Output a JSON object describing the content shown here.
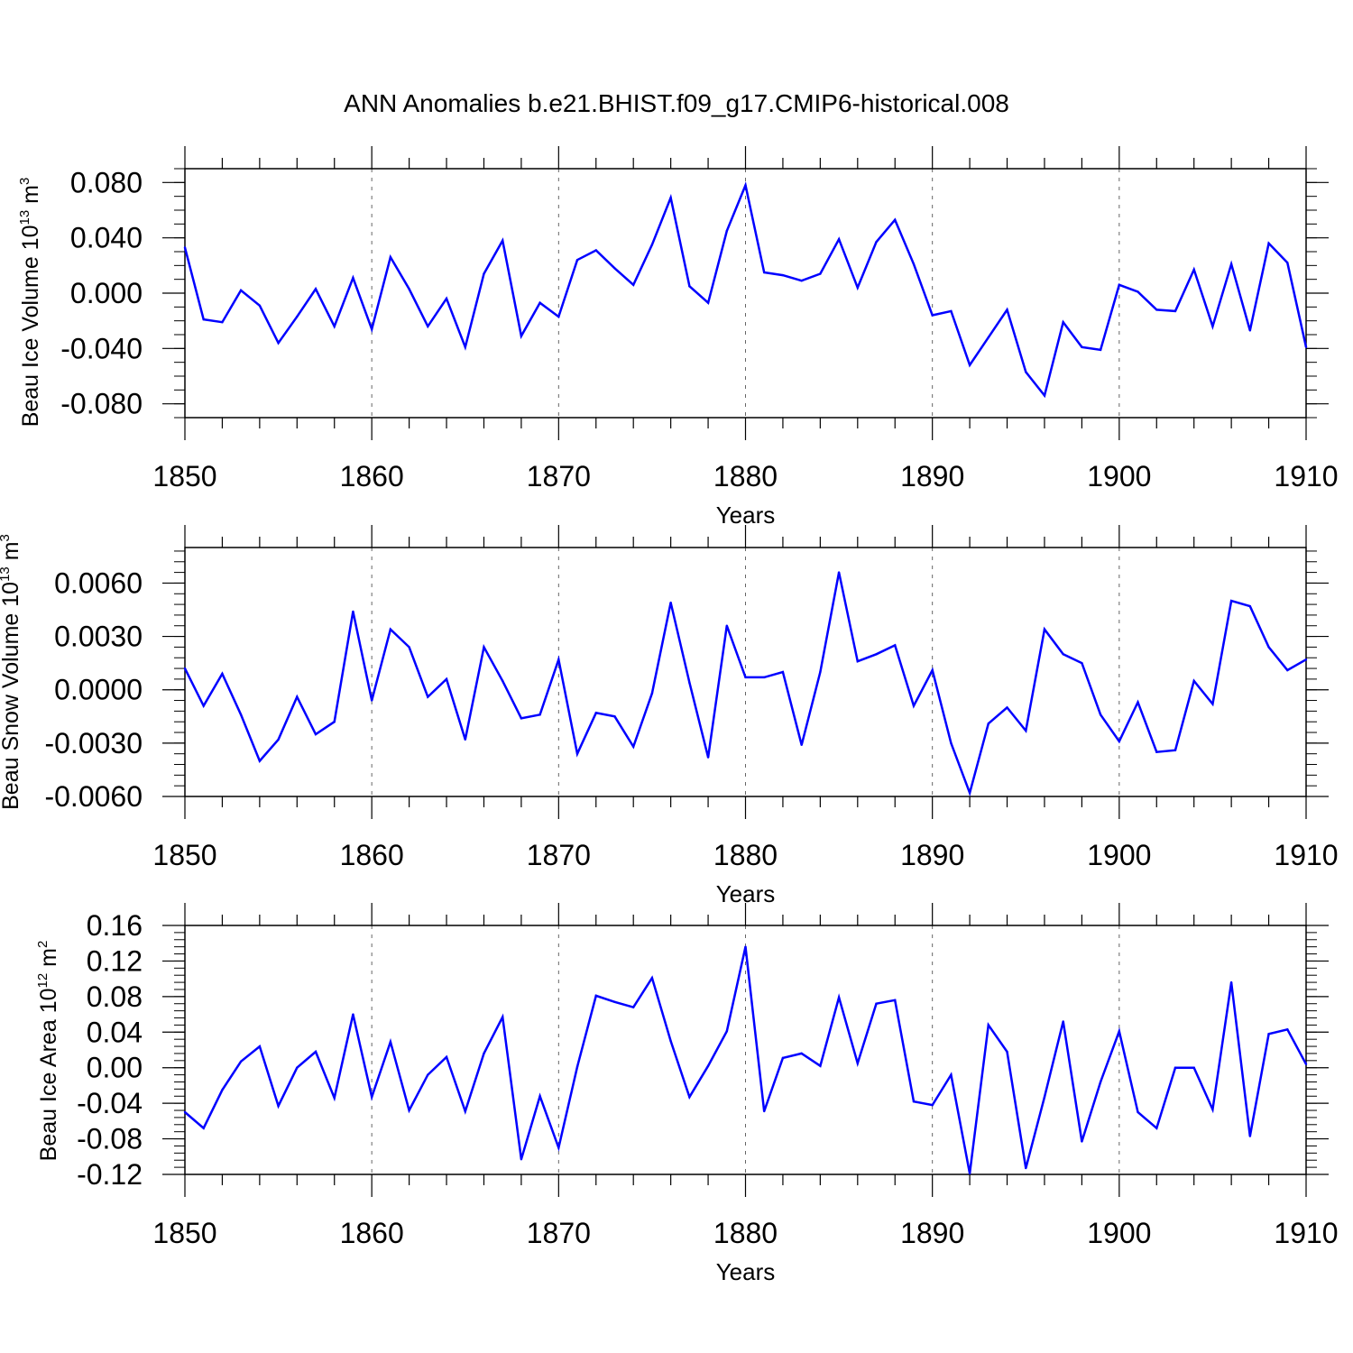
{
  "title": "ANN Anomalies b.e21.BHIST.f09_g17.CMIP6-historical.008",
  "chart_data": [
    {
      "type": "line",
      "ylabel": "Beau Ice Volume 10",
      "ylabel_exponent": "13",
      "ylabel_unit": "m",
      "ylabel_unit_exponent": "3",
      "xlabel": "Years",
      "xlim": [
        1850,
        1910
      ],
      "ylim": [
        -0.09,
        0.09
      ],
      "xticks": [
        "1850",
        "1860",
        "1870",
        "1880",
        "1890",
        "1900",
        "1910"
      ],
      "yticks": [
        "0.080",
        "0.040",
        "0.000",
        "-0.040",
        "-0.080"
      ],
      "grid": "dashed vertical at labeled x ticks",
      "line_color": "#0000ff",
      "x": [
        1850,
        1851,
        1852,
        1853,
        1854,
        1855,
        1856,
        1857,
        1858,
        1859,
        1860,
        1861,
        1862,
        1863,
        1864,
        1865,
        1866,
        1867,
        1868,
        1869,
        1870,
        1871,
        1872,
        1873,
        1874,
        1875,
        1876,
        1877,
        1878,
        1879,
        1880,
        1881,
        1882,
        1883,
        1884,
        1885,
        1886,
        1887,
        1888,
        1889,
        1890,
        1891,
        1892,
        1893,
        1894,
        1895,
        1896,
        1897,
        1898,
        1899,
        1900,
        1901,
        1902,
        1903,
        1904,
        1905,
        1906,
        1907,
        1908,
        1909,
        1910
      ],
      "values": [
        0.033,
        -0.019,
        -0.021,
        0.002,
        -0.009,
        -0.036,
        -0.017,
        0.003,
        -0.024,
        0.011,
        -0.026,
        0.026,
        0.003,
        -0.024,
        -0.004,
        -0.039,
        0.014,
        0.038,
        -0.031,
        -0.007,
        -0.017,
        0.024,
        0.031,
        0.018,
        0.006,
        0.035,
        0.069,
        0.005,
        -0.007,
        0.045,
        0.078,
        0.015,
        0.013,
        0.009,
        0.014,
        0.039,
        0.004,
        0.037,
        0.053,
        0.021,
        -0.016,
        -0.013,
        -0.052,
        -0.032,
        -0.012,
        -0.057,
        -0.074,
        -0.021,
        -0.039,
        -0.041,
        0.006,
        0.001,
        -0.012,
        -0.013,
        0.017,
        -0.024,
        0.021,
        -0.027,
        0.036,
        0.022,
        -0.039
      ]
    },
    {
      "type": "line",
      "ylabel": "Beau Snow Volume 10",
      "ylabel_exponent": "13",
      "ylabel_unit": "m",
      "ylabel_unit_exponent": "3",
      "xlabel": "Years",
      "xlim": [
        1850,
        1910
      ],
      "ylim": [
        -0.006,
        0.008
      ],
      "xticks": [
        "1850",
        "1860",
        "1870",
        "1880",
        "1890",
        "1900",
        "1910"
      ],
      "yticks": [
        "0.0060",
        "0.0030",
        "0.0000",
        "-0.0030",
        "-0.0060"
      ],
      "grid": "dashed vertical at labeled x ticks",
      "line_color": "#0000ff",
      "x": [
        1850,
        1851,
        1852,
        1853,
        1854,
        1855,
        1856,
        1857,
        1858,
        1859,
        1860,
        1861,
        1862,
        1863,
        1864,
        1865,
        1866,
        1867,
        1868,
        1869,
        1870,
        1871,
        1872,
        1873,
        1874,
        1875,
        1876,
        1877,
        1878,
        1879,
        1880,
        1881,
        1882,
        1883,
        1884,
        1885,
        1886,
        1887,
        1888,
        1889,
        1890,
        1891,
        1892,
        1893,
        1894,
        1895,
        1896,
        1897,
        1898,
        1899,
        1900,
        1901,
        1902,
        1903,
        1904,
        1905,
        1906,
        1907,
        1908,
        1909,
        1910
      ],
      "values": [
        0.0012,
        -0.0009,
        0.0009,
        -0.0014,
        -0.004,
        -0.0028,
        -0.0004,
        -0.0025,
        -0.0018,
        0.0044,
        -0.0006,
        0.0034,
        0.0024,
        -0.0004,
        0.0006,
        -0.0028,
        0.0024,
        0.0005,
        -0.0016,
        -0.0014,
        0.0017,
        -0.0036,
        -0.0013,
        -0.0015,
        -0.0032,
        -0.0002,
        0.0049,
        0.0004,
        -0.0038,
        0.0036,
        0.0007,
        0.0007,
        0.001,
        -0.0031,
        0.001,
        0.0066,
        0.0016,
        0.002,
        0.0025,
        -0.0009,
        0.0011,
        -0.003,
        -0.0058,
        -0.0019,
        -0.001,
        -0.0023,
        0.0034,
        0.002,
        0.0015,
        -0.0014,
        -0.0029,
        -0.0007,
        -0.0035,
        -0.0034,
        0.0005,
        -0.0008,
        0.005,
        0.0047,
        0.0024,
        0.0011,
        0.0017
      ]
    },
    {
      "type": "line",
      "ylabel": "Beau Ice Area 10",
      "ylabel_exponent": "12",
      "ylabel_unit": "m",
      "ylabel_unit_exponent": "2",
      "xlabel": "Years",
      "xlim": [
        1850,
        1910
      ],
      "ylim": [
        -0.12,
        0.16
      ],
      "xticks": [
        "1850",
        "1860",
        "1870",
        "1880",
        "1890",
        "1900",
        "1910"
      ],
      "yticks": [
        "0.16",
        "0.12",
        "0.08",
        "0.04",
        "0.00",
        "-0.04",
        "-0.08",
        "-0.12"
      ],
      "grid": "dashed vertical at labeled x ticks",
      "line_color": "#0000ff",
      "x": [
        1850,
        1851,
        1852,
        1853,
        1854,
        1855,
        1856,
        1857,
        1858,
        1859,
        1860,
        1861,
        1862,
        1863,
        1864,
        1865,
        1866,
        1867,
        1868,
        1869,
        1870,
        1871,
        1872,
        1873,
        1874,
        1875,
        1876,
        1877,
        1878,
        1879,
        1880,
        1881,
        1882,
        1883,
        1884,
        1885,
        1886,
        1887,
        1888,
        1889,
        1890,
        1891,
        1892,
        1893,
        1894,
        1895,
        1896,
        1897,
        1898,
        1899,
        1900,
        1901,
        1902,
        1903,
        1904,
        1905,
        1906,
        1907,
        1908,
        1909,
        1910
      ],
      "values": [
        -0.05,
        -0.068,
        -0.025,
        0.007,
        0.024,
        -0.043,
        0,
        0.018,
        -0.034,
        0.06,
        -0.033,
        0.029,
        -0.048,
        -0.008,
        0.012,
        -0.049,
        0.016,
        0.057,
        -0.103,
        -0.032,
        -0.09,
        0.001,
        0.081,
        0.074,
        0.068,
        0.101,
        0.03,
        -0.033,
        0.002,
        0.041,
        0.136,
        -0.049,
        0.011,
        0.016,
        0.002,
        0.079,
        0.005,
        0.072,
        0.076,
        -0.038,
        -0.042,
        -0.008,
        -0.119,
        0.048,
        0.018,
        -0.113,
        -0.033,
        0.052,
        -0.083,
        -0.016,
        0.041,
        -0.05,
        -0.068,
        0,
        0,
        -0.047,
        0.096,
        -0.077,
        0.038,
        0.043,
        0.004
      ]
    }
  ]
}
